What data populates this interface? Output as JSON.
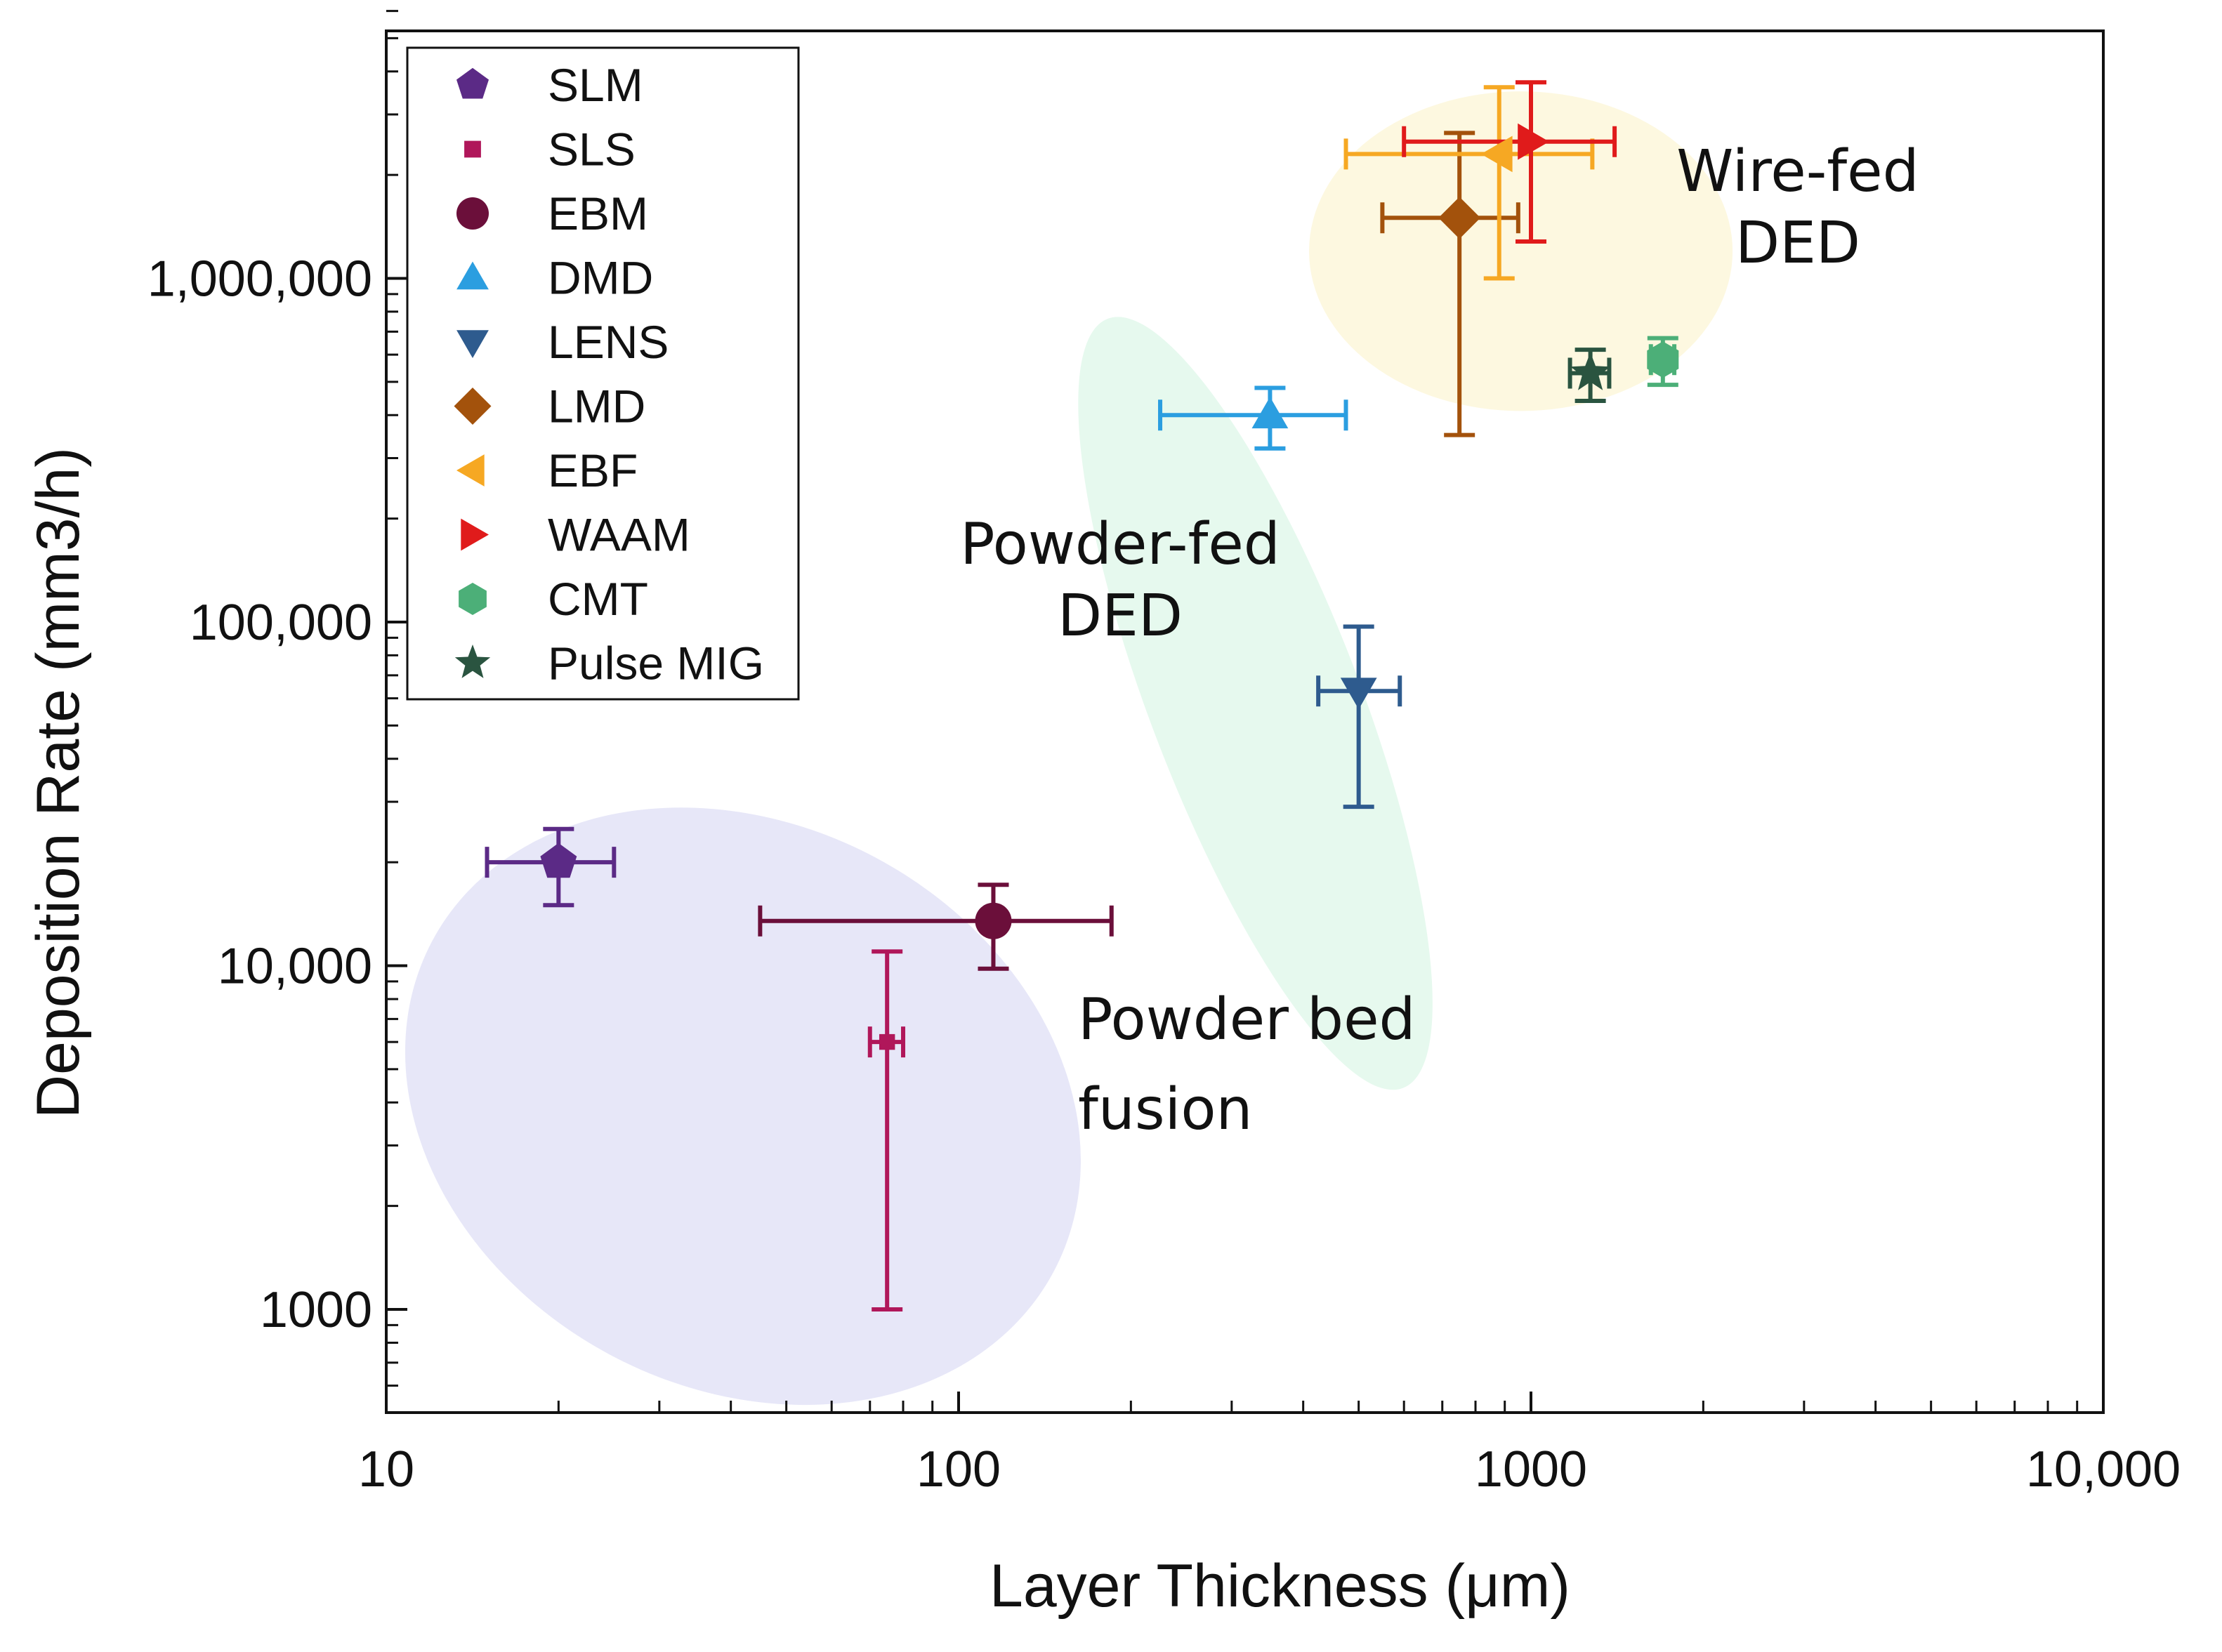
{
  "chart_data": {
    "type": "scatter",
    "x_scale": "log",
    "y_scale": "log",
    "xlabel": "Layer Thickness (μm)",
    "ylabel": "Deposition Rate (mm3/h)",
    "xlim": [
      10,
      10000
    ],
    "ylim": [
      500,
      6000000
    ],
    "x_ticks": [
      {
        "value": 10,
        "label": "10"
      },
      {
        "value": 100,
        "label": "100"
      },
      {
        "value": 1000,
        "label": "1000"
      },
      {
        "value": 10000,
        "label": "10,000"
      }
    ],
    "y_ticks": [
      {
        "value": 1000,
        "label": "1000"
      },
      {
        "value": 10000,
        "label": "10,000"
      },
      {
        "value": 100000,
        "label": "100,000"
      },
      {
        "value": 1000000,
        "label": "1,000,000"
      }
    ],
    "legend_position": "top-left",
    "series": [
      {
        "name": "SLM",
        "marker": "pentagon",
        "color": "#5b2a86",
        "x": 20,
        "x_err": [
          15,
          25
        ],
        "y": 20000,
        "y_err": [
          15000,
          25000
        ]
      },
      {
        "name": "SLS",
        "marker": "square",
        "color": "#b0175a",
        "x": 75,
        "x_err": [
          70,
          80
        ],
        "y": 6000,
        "y_err": [
          1000,
          11000
        ]
      },
      {
        "name": "EBM",
        "marker": "circle",
        "color": "#6b0f3a",
        "x": 115,
        "x_err": [
          45,
          185
        ],
        "y": 13500,
        "y_err": [
          9800,
          17200
        ]
      },
      {
        "name": "DMD",
        "marker": "triangle-up",
        "color": "#2b9ee0",
        "x": 350,
        "x_err": [
          225,
          475
        ],
        "y": 400000,
        "y_err": [
          320000,
          480000
        ]
      },
      {
        "name": "LENS",
        "marker": "triangle-down",
        "color": "#2e5b8e",
        "x": 500,
        "x_err": [
          425,
          590
        ],
        "y": 63000,
        "y_err": [
          29000,
          97000
        ]
      },
      {
        "name": "LMD",
        "marker": "diamond",
        "color": "#a3520c",
        "x": 750,
        "x_err": [
          550,
          950
        ],
        "y": 1500000,
        "y_err": [
          350000,
          2650000
        ]
      },
      {
        "name": "EBF",
        "marker": "triangle-left",
        "color": "#f6a823",
        "x": 880,
        "x_err": [
          475,
          1280
        ],
        "y": 2300000,
        "y_err": [
          1000000,
          3600000
        ]
      },
      {
        "name": "WAAM",
        "marker": "triangle-right",
        "color": "#e01b1b",
        "x": 1000,
        "x_err": [
          600,
          1400
        ],
        "y": 2500000,
        "y_err": [
          1280000,
          3720000
        ]
      },
      {
        "name": "CMT",
        "marker": "hexagon",
        "color": "#4caf78",
        "x": 1700,
        "x_err": [
          1620,
          1780
        ],
        "y": 580000,
        "y_err": [
          490000,
          670000
        ]
      },
      {
        "name": "Pulse MIG",
        "marker": "star",
        "color": "#2a5440",
        "x": 1270,
        "x_err": [
          1170,
          1370
        ],
        "y": 530000,
        "y_err": [
          440000,
          620000
        ]
      }
    ],
    "regions": [
      {
        "lines": [
          "Powder bed",
          "fusion"
        ],
        "fill": "#e7e7f8",
        "cx": 42,
        "cy": 3900,
        "rx_dec": 0.615,
        "ry_dec": 0.82,
        "angle": 28
      },
      {
        "lines": [
          "Powder-fed",
          "DED"
        ],
        "fill": "#e6f9ee",
        "cx": 330,
        "cy": 58000,
        "rx_dec": 0.72,
        "ry_dec": 0.305,
        "angle": 69
      },
      {
        "lines": [
          "Wire-fed",
          "DED"
        ],
        "fill": "#fdf8e0",
        "cx": 960,
        "cy": 1200000,
        "rx_dec": 0.37,
        "ry_dec": 0.465,
        "angle": 0
      }
    ]
  }
}
